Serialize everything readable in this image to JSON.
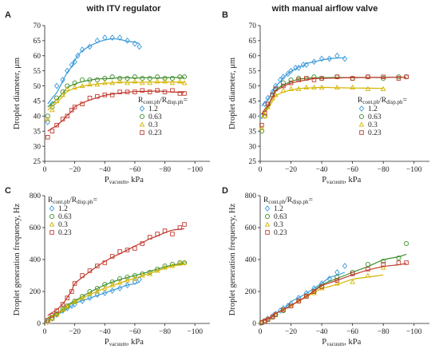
{
  "headers": [
    "with ITV regulator",
    "with manual airflow valve"
  ],
  "chart_data": [
    {
      "panel_label": "A",
      "type": "scatter",
      "xlabel": "P",
      "xlabel_sub": "vacuum",
      "xlabel_unit": ", kPa",
      "ylabel": "Droplet diameter, μm",
      "xlim": [
        0,
        -110
      ],
      "ylim": [
        25,
        70
      ],
      "xticks": [
        "0",
        "−20",
        "−40",
        "−60",
        "−80",
        "−100"
      ],
      "yticks": [
        "25",
        "30",
        "35",
        "40",
        "45",
        "50",
        "55",
        "60",
        "65",
        "70"
      ],
      "legend": {
        "title_main": "R",
        "title_sub1": "cont.ph",
        "title_mid": "/R",
        "title_sub2": "disp.ph",
        "title_suffix": "=",
        "position": "middle-right"
      },
      "series": [
        {
          "name": "1.2",
          "color": "#3a9ad9",
          "marker": "diamond",
          "fit": "#3a9ad9",
          "x": [
            -2,
            -5,
            -8,
            -12,
            -15,
            -18,
            -20,
            -22,
            -25,
            -30,
            -35,
            -40,
            -45,
            -50,
            -55,
            -60,
            -63
          ],
          "y": [
            38,
            44,
            50,
            52,
            55,
            57,
            58,
            60,
            62,
            63,
            65,
            66,
            66,
            66,
            65,
            64,
            63
          ]
        },
        {
          "name": "0.63",
          "color": "#3f8f2f",
          "marker": "circle",
          "fit": "#3f8f2f",
          "x": [
            -2,
            -5,
            -8,
            -12,
            -15,
            -20,
            -25,
            -30,
            -35,
            -40,
            -45,
            -50,
            -55,
            -60,
            -65,
            -70,
            -75,
            -80,
            -85,
            -90,
            -93
          ],
          "y": [
            40,
            43,
            46,
            48,
            50,
            51,
            52,
            52,
            52,
            52.5,
            53,
            52.5,
            52.5,
            53,
            52.5,
            52.5,
            53,
            52.5,
            52.5,
            53,
            53
          ]
        },
        {
          "name": "0.3",
          "color": "#d4b400",
          "marker": "triangle",
          "fit": "#d4b400",
          "x": [
            -2,
            -5,
            -8,
            -12,
            -15,
            -20,
            -25,
            -30,
            -35,
            -40,
            -45,
            -50,
            -55,
            -60,
            -65,
            -70,
            -75,
            -80,
            -85,
            -90,
            -93
          ],
          "y": [
            39,
            42,
            45,
            47,
            49,
            49.5,
            50,
            50.5,
            50.5,
            51,
            51,
            51.5,
            51,
            51.5,
            51,
            51,
            51.5,
            51.5,
            51,
            51.5,
            51
          ]
        },
        {
          "name": "0.23",
          "color": "#c0392b",
          "marker": "square",
          "fit": "#c0392b",
          "x": [
            -2,
            -5,
            -8,
            -12,
            -15,
            -18,
            -20,
            -25,
            -30,
            -35,
            -40,
            -45,
            -50,
            -55,
            -60,
            -65,
            -70,
            -75,
            -80,
            -85,
            -90,
            -93
          ],
          "y": [
            33,
            35,
            37,
            39,
            40,
            42,
            43,
            44,
            46,
            46.5,
            47,
            47,
            48,
            48,
            48,
            48.5,
            48,
            48.5,
            48,
            48.5,
            47.5,
            47.5
          ]
        }
      ]
    },
    {
      "panel_label": "B",
      "type": "scatter",
      "xlabel": "P",
      "xlabel_sub": "vacuum",
      "xlabel_unit": ", kPa",
      "ylabel": "Droplet diameter, μm",
      "xlim": [
        0,
        -110
      ],
      "ylim": [
        25,
        70
      ],
      "xticks": [
        "0",
        "−20",
        "−40",
        "−60",
        "−80",
        "−100"
      ],
      "yticks": [
        "25",
        "30",
        "35",
        "40",
        "45",
        "50",
        "55",
        "60",
        "65",
        "70"
      ],
      "legend": {
        "title_main": "R",
        "title_sub1": "cont.ph",
        "title_mid": "/R",
        "title_sub2": "disp.ph",
        "title_suffix": "=",
        "position": "middle-right"
      },
      "series": [
        {
          "name": "1.2",
          "color": "#3a9ad9",
          "marker": "diamond",
          "fit": "#3a9ad9",
          "x": [
            -1,
            -3,
            -5,
            -8,
            -10,
            -13,
            -15,
            -18,
            -20,
            -23,
            -25,
            -28,
            -30,
            -35,
            -40,
            -45,
            -50,
            -55
          ],
          "y": [
            40,
            44,
            46,
            48,
            50,
            52,
            53,
            54,
            55,
            56,
            56,
            57,
            57,
            58,
            59,
            59,
            60,
            59
          ]
        },
        {
          "name": "0.63",
          "color": "#3f8f2f",
          "marker": "circle",
          "fit": "#3f8f2f",
          "x": [
            -1,
            -3,
            -5,
            -8,
            -10,
            -15,
            -20,
            -25,
            -30,
            -35,
            -40,
            -50,
            -60,
            -70,
            -80,
            -90,
            -95
          ],
          "y": [
            35,
            40,
            44,
            47,
            49,
            51,
            52,
            52.5,
            52.5,
            53,
            52.5,
            53,
            52.5,
            53,
            52.5,
            53,
            53
          ]
        },
        {
          "name": "0.3",
          "color": "#d4b400",
          "marker": "triangle",
          "fit": "#d4b400",
          "x": [
            -1,
            -3,
            -5,
            -8,
            -10,
            -15,
            -20,
            -25,
            -30,
            -35,
            -40,
            -50,
            -60,
            -70,
            -80
          ],
          "y": [
            36,
            40,
            43,
            46,
            47,
            48.5,
            49,
            49,
            49.5,
            49.5,
            49.5,
            49.5,
            49.5,
            49,
            49
          ]
        },
        {
          "name": "0.23",
          "color": "#c0392b",
          "marker": "square",
          "fit": "#c0392b",
          "x": [
            -1,
            -3,
            -5,
            -8,
            -10,
            -15,
            -20,
            -25,
            -30,
            -35,
            -40,
            -50,
            -60,
            -70,
            -80,
            -90,
            -95
          ],
          "y": [
            37,
            41,
            44,
            47,
            49,
            50,
            51,
            52,
            52.5,
            52,
            52.5,
            53,
            52.5,
            53,
            53,
            52.5,
            53
          ]
        }
      ]
    },
    {
      "panel_label": "C",
      "type": "scatter",
      "xlabel": "P",
      "xlabel_sub": "vacuum",
      "xlabel_unit": ", kPa",
      "ylabel": "Droplet generation frequency, Hz",
      "xlim": [
        0,
        -110
      ],
      "ylim": [
        0,
        800
      ],
      "xticks": [
        "0",
        "−20",
        "−40",
        "−60",
        "−80",
        "−100"
      ],
      "yticks": [
        "0",
        "200",
        "400",
        "600",
        "800"
      ],
      "legend": {
        "title_main": "R",
        "title_sub1": "cont.ph",
        "title_mid": "/R",
        "title_sub2": "disp.ph",
        "title_suffix": "=",
        "position": "top-left"
      },
      "series": [
        {
          "name": "1.2",
          "color": "#3a9ad9",
          "marker": "diamond",
          "fit": "#3a9ad9",
          "x": [
            -2,
            -5,
            -8,
            -12,
            -15,
            -18,
            -20,
            -25,
            -30,
            -35,
            -40,
            -45,
            -50,
            -55,
            -60,
            -63
          ],
          "y": [
            10,
            30,
            55,
            80,
            95,
            110,
            120,
            140,
            160,
            180,
            190,
            205,
            220,
            240,
            260,
            275
          ]
        },
        {
          "name": "0.63",
          "color": "#3f8f2f",
          "marker": "circle",
          "fit": "#3f8f2f",
          "x": [
            -2,
            -5,
            -8,
            -12,
            -15,
            -20,
            -25,
            -30,
            -35,
            -40,
            -45,
            -50,
            -55,
            -60,
            -65,
            -70,
            -75,
            -80,
            -85,
            -90,
            -93
          ],
          "y": [
            12,
            35,
            60,
            90,
            110,
            140,
            170,
            200,
            220,
            245,
            260,
            280,
            290,
            300,
            310,
            320,
            340,
            360,
            370,
            380,
            380
          ]
        },
        {
          "name": "0.3",
          "color": "#d4b400",
          "marker": "triangle",
          "fit": "#d4b400",
          "x": [
            -2,
            -5,
            -8,
            -12,
            -15,
            -20,
            -25,
            -30,
            -35,
            -40,
            -45,
            -50,
            -55,
            -60,
            -65,
            -70,
            -75,
            -80,
            -85,
            -90,
            -93
          ],
          "y": [
            10,
            30,
            55,
            85,
            105,
            135,
            160,
            185,
            200,
            220,
            240,
            255,
            270,
            280,
            300,
            310,
            330,
            350,
            360,
            375,
            380
          ]
        },
        {
          "name": "0.23",
          "color": "#c0392b",
          "marker": "square",
          "fit": "#c0392b",
          "x": [
            -2,
            -5,
            -8,
            -12,
            -15,
            -18,
            -20,
            -25,
            -30,
            -35,
            -40,
            -45,
            -50,
            -55,
            -60,
            -65,
            -70,
            -75,
            -80,
            -85,
            -90,
            -93
          ],
          "y": [
            20,
            50,
            80,
            120,
            160,
            200,
            250,
            300,
            330,
            360,
            380,
            420,
            450,
            460,
            470,
            500,
            540,
            560,
            580,
            560,
            600,
            620
          ]
        }
      ]
    },
    {
      "panel_label": "D",
      "type": "scatter",
      "xlabel": "P",
      "xlabel_sub": "vacuum",
      "xlabel_unit": ", kPa",
      "ylabel": "Droplet generation frequency, Hz",
      "xlim": [
        0,
        -110
      ],
      "ylim": [
        0,
        800
      ],
      "xticks": [
        "0",
        "−20",
        "−40",
        "−60",
        "−80",
        "−100"
      ],
      "yticks": [
        "0",
        "200",
        "400",
        "600",
        "800"
      ],
      "legend": {
        "title_main": "R",
        "title_sub1": "cont.ph",
        "title_mid": "/R",
        "title_sub2": "disp.ph",
        "title_suffix": "=",
        "position": "top-left"
      },
      "series": [
        {
          "name": "1.2",
          "color": "#3a9ad9",
          "marker": "diamond",
          "fit": "#3a9ad9",
          "x": [
            -1,
            -3,
            -5,
            -8,
            -10,
            -13,
            -15,
            -18,
            -20,
            -25,
            -30,
            -35,
            -40,
            -45,
            -50,
            -55
          ],
          "y": [
            5,
            15,
            30,
            45,
            60,
            80,
            95,
            110,
            125,
            160,
            190,
            220,
            250,
            280,
            320,
            360
          ]
        },
        {
          "name": "0.63",
          "color": "#3f8f2f",
          "marker": "circle",
          "fit": "#3f8f2f",
          "x": [
            -1,
            -3,
            -5,
            -8,
            -10,
            -15,
            -20,
            -25,
            -30,
            -35,
            -40,
            -50,
            -60,
            -70,
            -80,
            -90,
            -95
          ],
          "y": [
            5,
            15,
            25,
            40,
            55,
            80,
            110,
            140,
            170,
            200,
            230,
            290,
            320,
            370,
            390,
            410,
            500
          ]
        },
        {
          "name": "0.3",
          "color": "#d4b400",
          "marker": "triangle",
          "fit": "#d4b400",
          "x": [
            -1,
            -3,
            -5,
            -8,
            -10,
            -15,
            -20,
            -25,
            -30,
            -35,
            -40,
            -50,
            -60,
            -70,
            -80
          ],
          "y": [
            5,
            15,
            25,
            40,
            55,
            85,
            110,
            140,
            170,
            190,
            220,
            250,
            260,
            300,
            350
          ]
        },
        {
          "name": "0.23",
          "color": "#c0392b",
          "marker": "square",
          "fit": "#c0392b",
          "x": [
            -1,
            -3,
            -5,
            -8,
            -10,
            -15,
            -20,
            -25,
            -30,
            -35,
            -40,
            -50,
            -60,
            -70,
            -80,
            -90,
            -95
          ],
          "y": [
            5,
            15,
            25,
            40,
            55,
            85,
            110,
            140,
            170,
            200,
            230,
            270,
            310,
            340,
            370,
            380,
            380
          ]
        }
      ]
    }
  ]
}
